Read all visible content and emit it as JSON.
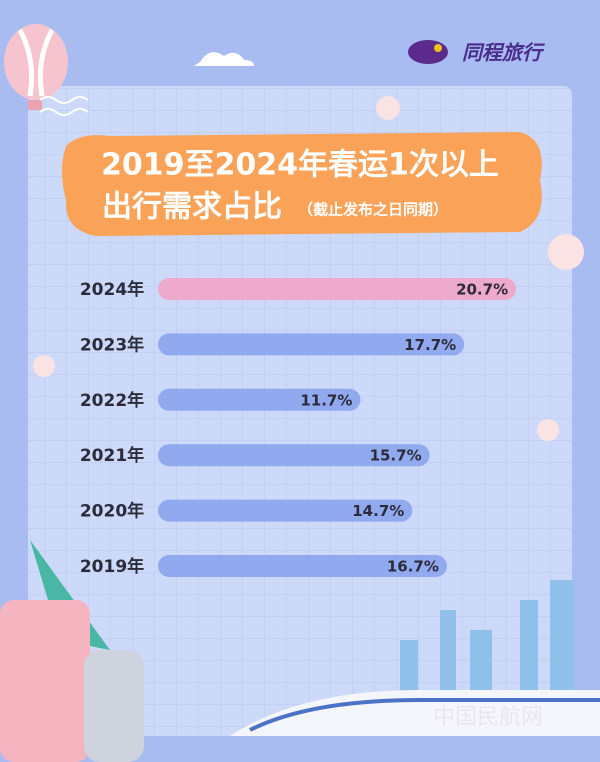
{
  "brand": "同程旅行",
  "watermark": "中国民航网",
  "chart_data": {
    "type": "bar",
    "orientation": "horizontal",
    "title": [
      "2019至2024年春运1次以上",
      "出行需求占比"
    ],
    "note": "（截止发布之日同期）",
    "categories": [
      "2024年",
      "2023年",
      "2022年",
      "2021年",
      "2020年",
      "2019年"
    ],
    "values": [
      20.7,
      17.7,
      11.7,
      15.7,
      14.7,
      16.7
    ],
    "value_labels": [
      "20.7%",
      "17.7%",
      "11.7%",
      "15.7%",
      "14.7%",
      "16.7%"
    ],
    "colors": [
      "#eeaacb",
      "#91a9ef",
      "#91a9ef",
      "#91a9ef",
      "#91a9ef",
      "#91a9ef"
    ]
  }
}
